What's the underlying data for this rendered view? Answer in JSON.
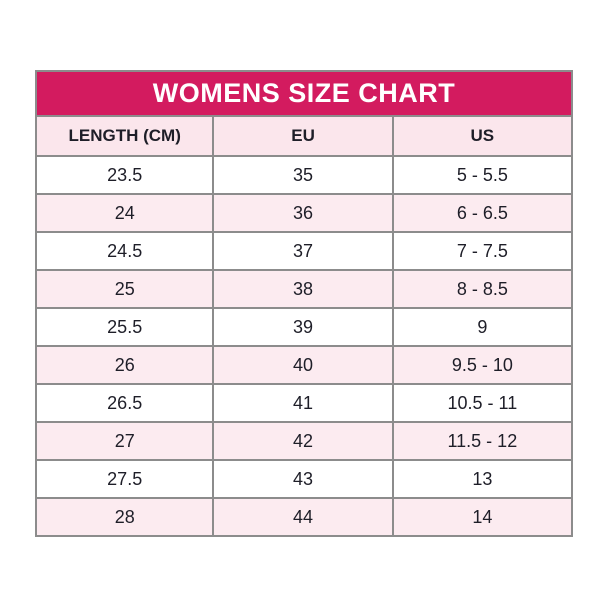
{
  "colors": {
    "banner_bg": "#d31b5f",
    "banner_text": "#ffffff",
    "header_bg": "#fbe6ec",
    "row_pink": "#fcebf0",
    "border": "#8c8c8c",
    "text": "#1e1e28"
  },
  "chart_data": {
    "type": "table",
    "title": "WOMENS SIZE CHART",
    "columns": [
      "LENGTH (CM)",
      "EU",
      "US"
    ],
    "rows": [
      [
        "23.5",
        "35",
        "5 - 5.5"
      ],
      [
        "24",
        "36",
        "6 - 6.5"
      ],
      [
        "24.5",
        "37",
        "7 - 7.5"
      ],
      [
        "25",
        "38",
        "8 - 8.5"
      ],
      [
        "25.5",
        "39",
        "9"
      ],
      [
        "26",
        "40",
        "9.5 - 10"
      ],
      [
        "26.5",
        "41",
        "10.5 - 11"
      ],
      [
        "27",
        "42",
        "11.5 - 12"
      ],
      [
        "27.5",
        "43",
        "13"
      ],
      [
        "28",
        "44",
        "14"
      ]
    ]
  }
}
